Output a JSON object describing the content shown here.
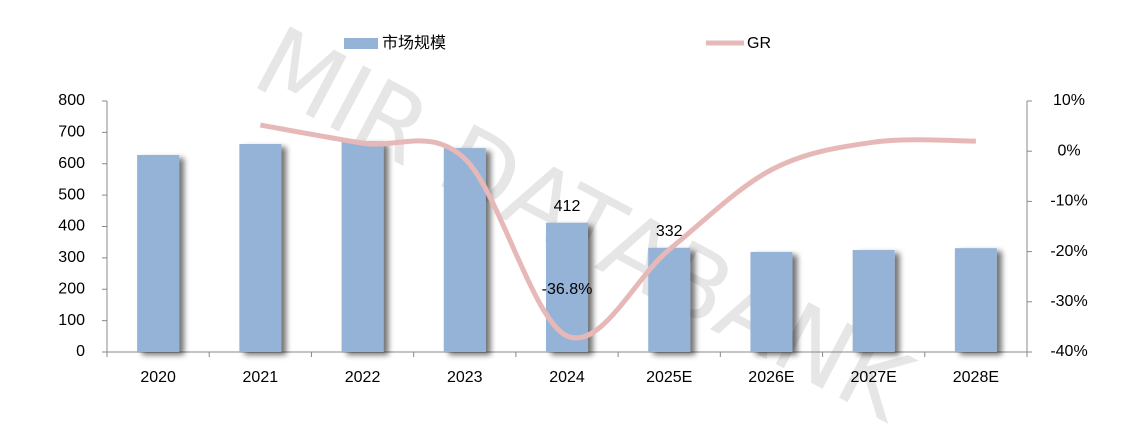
{
  "watermark": "MIR DATABANK",
  "chart_data": {
    "type": "bar-line",
    "categories": [
      "2020",
      "2021",
      "2022",
      "2023",
      "2024",
      "2025E",
      "2026E",
      "2027E",
      "2028E"
    ],
    "series": [
      {
        "name": "市场规模",
        "type": "bar",
        "color": "#95b3d7",
        "values": [
          628,
          663,
          672,
          650,
          412,
          332,
          319,
          325,
          331
        ],
        "value_labels": [
          null,
          null,
          null,
          null,
          "412",
          "332",
          null,
          null,
          null
        ]
      },
      {
        "name": "GR",
        "type": "line",
        "axis": "y2",
        "color": "#e6b9b8",
        "values": [
          null,
          5.2,
          1.6,
          -1.5,
          -36.8,
          -19.6,
          -3.7,
          1.8,
          2.0
        ],
        "value_labels": [
          null,
          null,
          null,
          null,
          "-36.8%",
          null,
          null,
          null,
          null
        ]
      }
    ],
    "ylim": [
      0,
      800
    ],
    "yticks": [
      0,
      100,
      200,
      300,
      400,
      500,
      600,
      700,
      800
    ],
    "y2lim": [
      -40,
      10
    ],
    "y2ticks": [
      {
        "value": -40,
        "label": "-40%"
      },
      {
        "value": -30,
        "label": "-30%"
      },
      {
        "value": -20,
        "label": "-20%"
      },
      {
        "value": -10,
        "label": "-10%"
      },
      {
        "value": 0,
        "label": "0%"
      },
      {
        "value": 10,
        "label": "10%"
      }
    ],
    "legend": "top"
  }
}
